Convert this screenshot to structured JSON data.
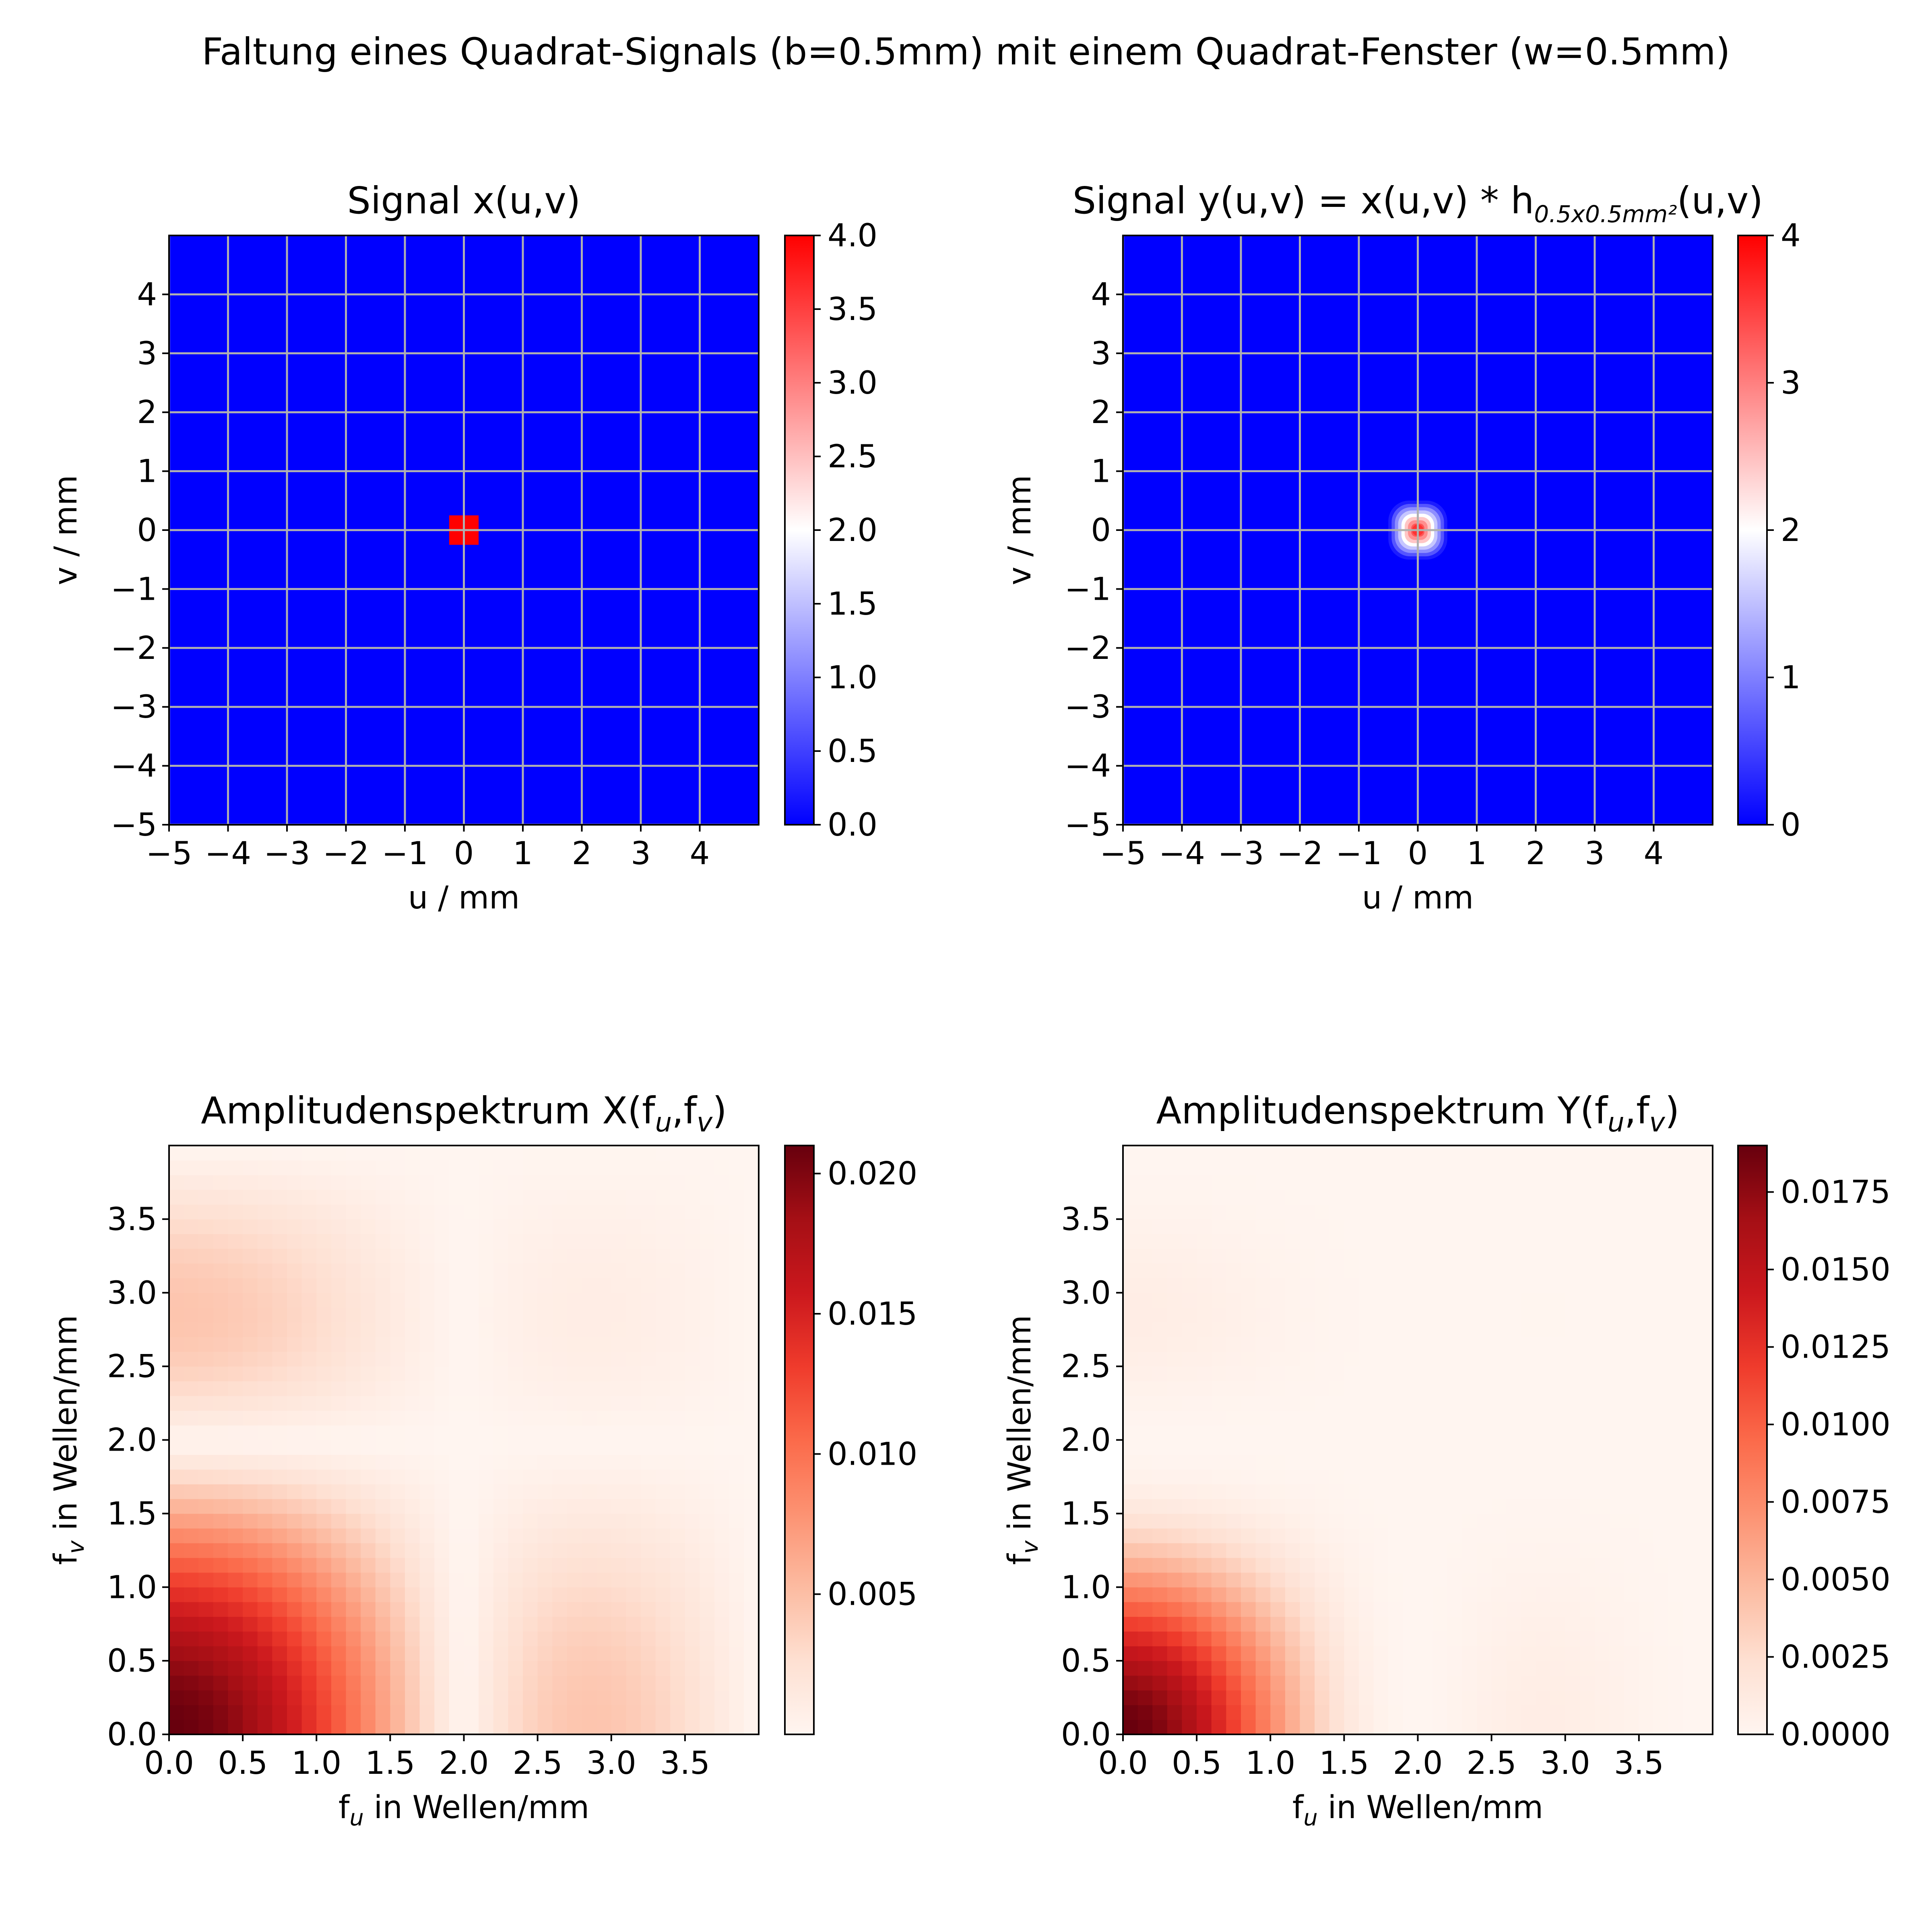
{
  "figure": {
    "suptitle": "Faltung eines Quadrat-Signals (b=0.5mm) mit einem Quadrat-Fenster (w=0.5mm)"
  },
  "chart_data": [
    {
      "type": "heatmap",
      "id": "signal-x",
      "title": "Signal x(u,v)",
      "xlabel": "u / mm",
      "ylabel": "v / mm",
      "xlim": [
        -5,
        5
      ],
      "ylim": [
        -5,
        5
      ],
      "xticks": [
        -5,
        -4,
        -3,
        -2,
        -1,
        0,
        1,
        2,
        3,
        4
      ],
      "yticks": [
        -5,
        -4,
        -3,
        -2,
        -1,
        0,
        1,
        2,
        3,
        4
      ],
      "xticklabels": [
        "−5",
        "−4",
        "−3",
        "−2",
        "−1",
        "0",
        "1",
        "2",
        "3",
        "4"
      ],
      "yticklabels": [
        "−5",
        "−4",
        "−3",
        "−2",
        "−1",
        "0",
        "1",
        "2",
        "3",
        "4"
      ],
      "grid": true,
      "colormap": "bwr",
      "colormap_colors": [
        "#0000ff",
        "#ffffff",
        "#ff0000"
      ],
      "vmin": 0,
      "vmax": 4,
      "colorbar_ticks": [
        "0.0",
        "0.5",
        "1.0",
        "1.5",
        "2.0",
        "2.5",
        "3.0",
        "3.5",
        "4.0"
      ],
      "colorbar_tick_values": [
        0,
        0.5,
        1,
        1.5,
        2,
        2.5,
        3,
        3.5,
        4
      ],
      "background_value": 0,
      "feature": {
        "kind": "square",
        "center": [
          0,
          0
        ],
        "width": 0.5,
        "value": 4
      }
    },
    {
      "type": "heatmap",
      "id": "signal-y",
      "title": "Signal y(u,v) = x(u,v) * h",
      "title_subscript": "0.5x0.5mm²",
      "title_suffix": "(u,v)",
      "xlabel": "u / mm",
      "ylabel": "v / mm",
      "xlim": [
        -5,
        5
      ],
      "ylim": [
        -5,
        5
      ],
      "xticks": [
        -5,
        -4,
        -3,
        -2,
        -1,
        0,
        1,
        2,
        3,
        4
      ],
      "yticks": [
        -5,
        -4,
        -3,
        -2,
        -1,
        0,
        1,
        2,
        3,
        4
      ],
      "xticklabels": [
        "−5",
        "−4",
        "−3",
        "−2",
        "−1",
        "0",
        "1",
        "2",
        "3",
        "4"
      ],
      "yticklabels": [
        "−5",
        "−4",
        "−3",
        "−2",
        "−1",
        "0",
        "1",
        "2",
        "3",
        "4"
      ],
      "grid": true,
      "colormap": "bwr",
      "colormap_colors": [
        "#0000ff",
        "#ffffff",
        "#ff0000"
      ],
      "vmin": 0,
      "vmax": 4,
      "colorbar_ticks": [
        "0",
        "1",
        "2",
        "3",
        "4"
      ],
      "colorbar_tick_values": [
        0,
        1,
        2,
        3,
        4
      ],
      "background_value": 0,
      "feature": {
        "kind": "pyramid",
        "center": [
          0,
          0
        ],
        "half_width": 0.5,
        "peak": 4
      }
    },
    {
      "type": "heatmap",
      "id": "spectrum-x",
      "title": "Amplitudenspektrum X(f",
      "title_parts": [
        "Amplitudenspektrum X(f",
        "u",
        ",f",
        "v",
        ")"
      ],
      "xlabel": "f",
      "xlabel_sub": "u",
      "xlabel_rest": " in Wellen/mm",
      "ylabel": "f",
      "ylabel_sub": "v",
      "ylabel_rest": " in Wellen/mm",
      "xlim": [
        0,
        4
      ],
      "ylim": [
        0,
        4
      ],
      "xticks": [
        0,
        0.5,
        1,
        1.5,
        2,
        2.5,
        3,
        3.5
      ],
      "yticks": [
        0,
        0.5,
        1,
        1.5,
        2,
        2.5,
        3,
        3.5
      ],
      "xticklabels": [
        "0.0",
        "0.5",
        "1.0",
        "1.5",
        "2.0",
        "2.5",
        "3.0",
        "3.5"
      ],
      "yticklabels": [
        "0.0",
        "0.5",
        "1.0",
        "1.5",
        "2.0",
        "2.5",
        "3.0",
        "3.5"
      ],
      "grid": false,
      "colormap": "Reds",
      "colormap_colors": [
        "#fff5f0",
        "#fee0d2",
        "#fcbba1",
        "#fc9272",
        "#fb6a4a",
        "#ef3b2c",
        "#cb181d",
        "#a50f15",
        "#67000d"
      ],
      "vmin": 0,
      "vmax": 0.021,
      "colorbar_ticks": [
        "0.005",
        "0.010",
        "0.015",
        "0.020"
      ],
      "colorbar_tick_values": [
        0.005,
        0.01,
        0.015,
        0.02
      ],
      "grid_cells": 40,
      "model": {
        "form": "sinc2d",
        "amplitude": 0.021,
        "width": 0.5,
        "power": 1
      }
    },
    {
      "type": "heatmap",
      "id": "spectrum-y",
      "title": "Amplitudenspektrum Y(f",
      "title_parts": [
        "Amplitudenspektrum Y(f",
        "u",
        ",f",
        "v",
        ")"
      ],
      "xlabel": "f",
      "xlabel_sub": "u",
      "xlabel_rest": " in Wellen/mm",
      "ylabel": "f",
      "ylabel_sub": "v",
      "ylabel_rest": " in Wellen/mm",
      "xlim": [
        0,
        4
      ],
      "ylim": [
        0,
        4
      ],
      "xticks": [
        0,
        0.5,
        1,
        1.5,
        2,
        2.5,
        3,
        3.5
      ],
      "yticks": [
        0,
        0.5,
        1,
        1.5,
        2,
        2.5,
        3,
        3.5
      ],
      "xticklabels": [
        "0.0",
        "0.5",
        "1.0",
        "1.5",
        "2.0",
        "2.5",
        "3.0",
        "3.5"
      ],
      "yticklabels": [
        "0.0",
        "0.5",
        "1.0",
        "1.5",
        "2.0",
        "2.5",
        "3.0",
        "3.5"
      ],
      "grid": false,
      "colormap": "Reds",
      "colormap_colors": [
        "#fff5f0",
        "#fee0d2",
        "#fcbba1",
        "#fc9272",
        "#fb6a4a",
        "#ef3b2c",
        "#cb181d",
        "#a50f15",
        "#67000d"
      ],
      "vmin": 0,
      "vmax": 0.019,
      "colorbar_ticks": [
        "0.0000",
        "0.0025",
        "0.0050",
        "0.0075",
        "0.0100",
        "0.0125",
        "0.0150",
        "0.0175"
      ],
      "colorbar_tick_values": [
        0,
        0.0025,
        0.005,
        0.0075,
        0.01,
        0.0125,
        0.015,
        0.0175
      ],
      "grid_cells": 40,
      "model": {
        "form": "sinc2d",
        "amplitude": 0.019,
        "width": 0.5,
        "power": 2
      }
    }
  ]
}
